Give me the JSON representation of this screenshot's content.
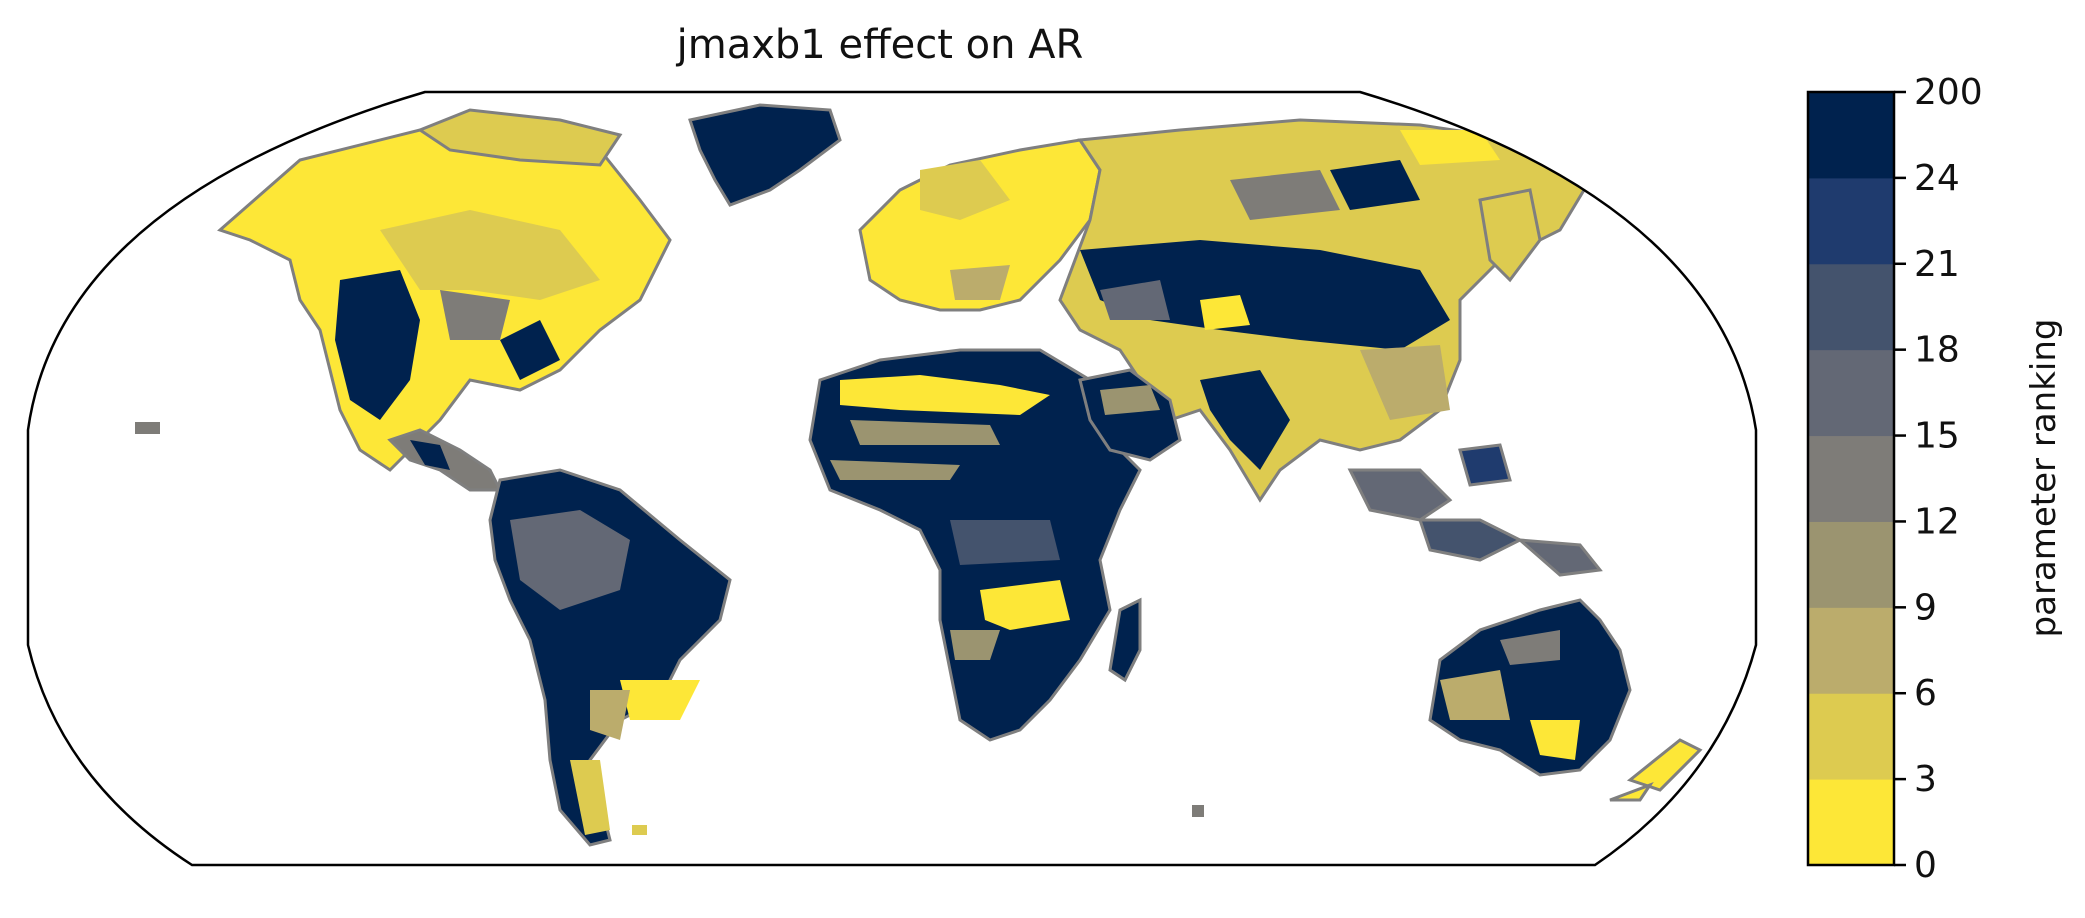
{
  "title": "jmaxb1 effect on AR",
  "colorbar": {
    "label": "parameter ranking",
    "ticks": [
      "0",
      "3",
      "6",
      "9",
      "12",
      "15",
      "18",
      "21",
      "24",
      "200"
    ],
    "colors": [
      "#fde737",
      "#ddcb50",
      "#bbac6c",
      "#9b9470",
      "#7e7c78",
      "#636875",
      "#44536d",
      "#1f3b6e",
      "#00224e"
    ]
  },
  "map": {
    "projection": "robinson",
    "coastline_color": "#7f7f7f",
    "ocean_color": "#ffffff"
  }
}
